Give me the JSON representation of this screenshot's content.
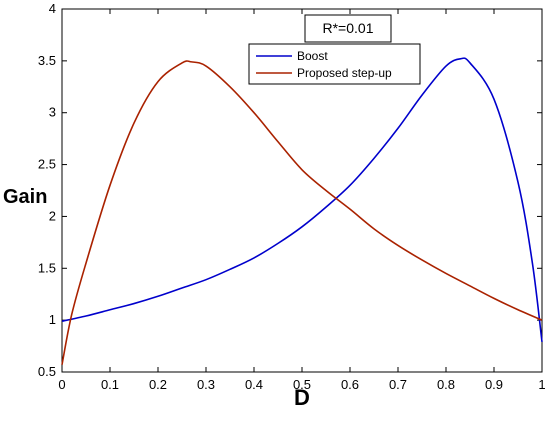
{
  "chart_data": {
    "type": "line",
    "title": "",
    "xlabel": "D",
    "ylabel": "Gain",
    "xlim": [
      0,
      1
    ],
    "ylim": [
      0.5,
      4
    ],
    "grid": false,
    "x_ticks": [
      "0",
      "0.1",
      "0.2",
      "0.3",
      "0.4",
      "0.5",
      "0.6",
      "0.7",
      "0.8",
      "0.9",
      "1"
    ],
    "y_ticks": [
      "0.5",
      "1",
      "1.5",
      "2",
      "2.5",
      "3",
      "3.5",
      "4"
    ],
    "legend_position": "top-right",
    "annotation": "R*=0.01",
    "series": [
      {
        "name": "Boost",
        "color": "#0000cc",
        "x": [
          0,
          0.05,
          0.1,
          0.15,
          0.2,
          0.25,
          0.3,
          0.35,
          0.4,
          0.45,
          0.5,
          0.55,
          0.6,
          0.65,
          0.7,
          0.75,
          0.8,
          0.83,
          0.85,
          0.9,
          0.95,
          0.98,
          1.0
        ],
        "y": [
          0.99,
          1.04,
          1.1,
          1.16,
          1.23,
          1.31,
          1.39,
          1.49,
          1.6,
          1.74,
          1.9,
          2.09,
          2.3,
          2.56,
          2.85,
          3.17,
          3.45,
          3.52,
          3.48,
          3.13,
          2.33,
          1.55,
          0.79
        ]
      },
      {
        "name": "Proposed step-up",
        "color": "#aa2200",
        "x": [
          0,
          0.02,
          0.05,
          0.1,
          0.15,
          0.2,
          0.25,
          0.27,
          0.3,
          0.35,
          0.4,
          0.45,
          0.5,
          0.55,
          0.6,
          0.65,
          0.7,
          0.75,
          0.8,
          0.85,
          0.9,
          0.95,
          1.0
        ],
        "y": [
          0.57,
          1.05,
          1.55,
          2.3,
          2.9,
          3.3,
          3.48,
          3.49,
          3.45,
          3.25,
          3.0,
          2.72,
          2.45,
          2.25,
          2.07,
          1.88,
          1.72,
          1.58,
          1.45,
          1.33,
          1.21,
          1.1,
          1.0
        ]
      }
    ]
  }
}
